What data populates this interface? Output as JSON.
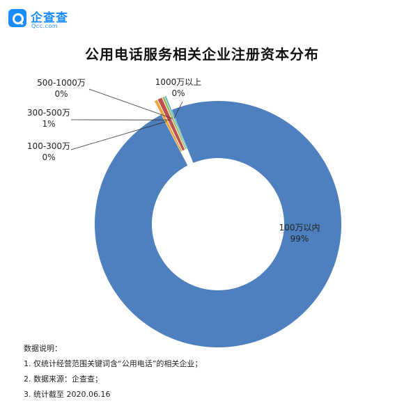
{
  "logo": {
    "name": "企查查",
    "domain": "Qcc.com"
  },
  "title": "公用电话服务相关企业注册资本分布",
  "chart_data": {
    "type": "pie",
    "donut": true,
    "title": "公用电话服务相关企业注册资本分布",
    "slices": [
      {
        "label": "100万以内",
        "percent_label": "99%",
        "value": 98.5,
        "color": "#4e7fbf"
      },
      {
        "label": "100-300万",
        "percent_label": "0%",
        "value": 0.4,
        "color": "#f2a23a"
      },
      {
        "label": "300-500万",
        "percent_label": "1%",
        "value": 0.6,
        "color": "#c0504d"
      },
      {
        "label": "500-1000万",
        "percent_label": "0%",
        "value": 0.3,
        "color": "#9bbb59"
      },
      {
        "label": "1000万以上",
        "percent_label": "0%",
        "value": 0.2,
        "color": "#4bacc6"
      }
    ]
  },
  "notes": [
    "数据说明：",
    "1. 仅统计经营范围关键词含“公用电话”的相关企业；",
    "2. 数据来源：企查查；",
    "3. 统计截至 2020.06.16"
  ]
}
